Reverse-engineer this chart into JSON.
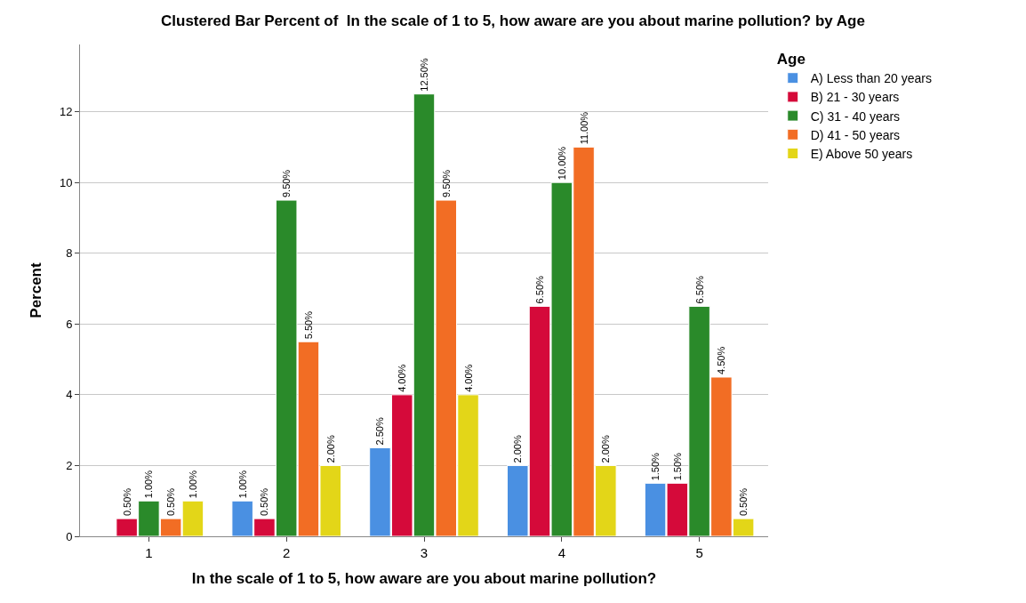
{
  "chart_data": {
    "type": "bar",
    "title": "Clustered Bar Percent of  In the scale of 1 to 5, how aware are you about marine pollution? by Age",
    "xlabel": "In the scale of 1 to 5, how aware are you about marine pollution?",
    "ylabel": "Percent",
    "legend_title": "Age",
    "categories": [
      "1",
      "2",
      "3",
      "4",
      "5"
    ],
    "ylim": [
      0,
      13.9
    ],
    "yticks": [
      0,
      2,
      4,
      6,
      8,
      10,
      12
    ],
    "grid": "y",
    "legend": "top right",
    "series": [
      {
        "name": "A) Less than 20 years",
        "color": "#4a90e2",
        "values": [
          null,
          1.0,
          2.5,
          2.0,
          1.5
        ],
        "value_labels": [
          null,
          "1.00%",
          "2.50%",
          "2.00%",
          "1.50%"
        ]
      },
      {
        "name": "B) 21 - 30 years",
        "color": "#d50a3a",
        "values": [
          0.5,
          0.5,
          4.0,
          6.5,
          1.5
        ],
        "value_labels": [
          "0.50%",
          "0.50%",
          "4.00%",
          "6.50%",
          "1.50%"
        ]
      },
      {
        "name": "C) 31 - 40 years",
        "color": "#2a8a2a",
        "values": [
          1.0,
          9.5,
          12.5,
          10.0,
          6.5
        ],
        "value_labels": [
          "1.00%",
          "9.50%",
          "12.50%",
          "10.00%",
          "6.50%"
        ]
      },
      {
        "name": "D) 41 - 50 years",
        "color": "#f26d24",
        "values": [
          0.5,
          5.5,
          9.5,
          11.0,
          4.5
        ],
        "value_labels": [
          "0.50%",
          "5.50%",
          "9.50%",
          "11.00%",
          "4.50%"
        ]
      },
      {
        "name": "E) Above 50 years",
        "color": "#e3d618",
        "values": [
          1.0,
          2.0,
          4.0,
          2.0,
          0.5
        ],
        "value_labels": [
          "1.00%",
          "2.00%",
          "4.00%",
          "2.00%",
          "0.50%"
        ]
      }
    ]
  }
}
